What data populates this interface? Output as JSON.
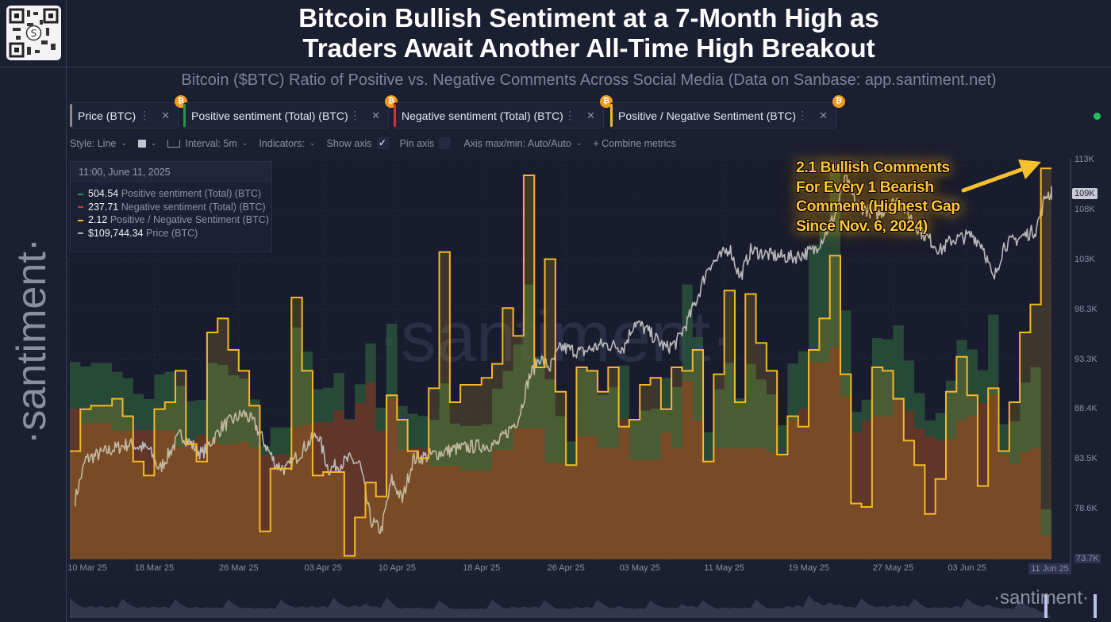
{
  "header": {
    "title_line1": "Bitcoin Bullish Sentiment at a 7-Month High as",
    "title_line2": "Traders Await Another All-Time High Breakout",
    "subtitle": "Bitcoin ($BTC) Ratio of Positive vs. Negative Comments Across Social Media (Data on Sanbase: app.santiment.net)",
    "watermark": "·santiment·",
    "qr_icon": "qr-code-icon"
  },
  "metrics": [
    {
      "label": "Price (BTC)",
      "color": "#9a9a9a"
    },
    {
      "label": "Positive sentiment (Total) (BTC)",
      "color": "#2f8f4e"
    },
    {
      "label": "Negative sentiment (Total) (BTC)",
      "color": "#d0343a"
    },
    {
      "label": "Positive / Negative Sentiment (BTC)",
      "color": "#f5b826"
    }
  ],
  "toolbar": {
    "style": "Style: Line",
    "interval": "Interval: 5m",
    "indicators": "Indicators:",
    "show_axis": "Show axis",
    "show_axis_checked": true,
    "pin_axis": "Pin axis",
    "pin_axis_checked": false,
    "axis_minmax": "Axis max/min: Auto/Auto",
    "combine": "+ Combine metrics"
  },
  "legend": {
    "timestamp": "11:00, June 11, 2025",
    "rows": [
      {
        "value": "504.54",
        "label": "Positive sentiment (Total) (BTC)",
        "color": "#2f8f4e"
      },
      {
        "value": "237.71",
        "label": "Negative sentiment (Total) (BTC)",
        "color": "#d0343a"
      },
      {
        "value": "2.12",
        "label": "Positive / Negative Sentiment (BTC)",
        "color": "#f5b826"
      },
      {
        "value": "$109,744.34",
        "label": "Price (BTC)",
        "color": "#b0b0b0"
      }
    ]
  },
  "annotation": {
    "lines": [
      "2.1 Bullish Comments",
      "For Every 1 Bearish",
      "Comment (Highest Gap",
      "Since Nov. 6, 2024)"
    ],
    "color": "#ffc83a"
  },
  "footer_logo": "·santiment·",
  "chart_data": {
    "type": "line",
    "start_date": "2025-03-10",
    "x_ticks": [
      "10 Mar 25",
      "18 Mar 25",
      "26 Mar 25",
      "03 Apr 25",
      "10 Apr 25",
      "18 Apr 25",
      "26 Apr 25",
      "03 May 25",
      "11 May 25",
      "19 May 25",
      "27 May 25",
      "03 Jun 25",
      "11 Jun 25"
    ],
    "price_axis": {
      "ticks": [
        "113K",
        "108K",
        "103K",
        "98.3K",
        "93.3K",
        "88.4K",
        "83.5K",
        "78.6K",
        "73.7K"
      ],
      "ylim": [
        73.7,
        113
      ],
      "current_badge": "109K",
      "unit": "K USD"
    },
    "series": [
      {
        "name": "Positive / Negative Sentiment (BTC)",
        "style": "step-area",
        "color": "#f5b826",
        "values": [
          1.31,
          1.43,
          1.44,
          1.44,
          1.46,
          1.41,
          1.28,
          1.24,
          1.43,
          1.45,
          1.54,
          1.33,
          1.28,
          1.65,
          1.69,
          1.6,
          1.54,
          1.44,
          1.08,
          1.26,
          1.26,
          1.75,
          1.54,
          1.24,
          1.25,
          1.25,
          1.01,
          1.12,
          1.22,
          1.18,
          1.47,
          1.4,
          1.31,
          1.29,
          1.49,
          1.88,
          1.45,
          1.5,
          1.5,
          1.52,
          1.56,
          1.72,
          1.64,
          2.1,
          1.55,
          1.86,
          1.48,
          1.27,
          1.55,
          1.54,
          1.48,
          1.55,
          1.38,
          1.4,
          1.5,
          1.52,
          1.43,
          1.55,
          1.54,
          1.6,
          1.28,
          1.53,
          1.77,
          1.45,
          1.76,
          1.62,
          1.54,
          1.3,
          1.41,
          1.38,
          1.6,
          1.69,
          1.87,
          1.53,
          1.16,
          1.15,
          1.55,
          1.54,
          1.46,
          1.34,
          1.27,
          1.13,
          1.23,
          1.48,
          1.58,
          1.47,
          1.21,
          1.49,
          1.31,
          1.45,
          1.65,
          1.73,
          2.12
        ]
      },
      {
        "name": "Negative sentiment (Total) (BTC)",
        "style": "step-area",
        "color": "#8a3a24",
        "values": [
          1520,
          1360,
          1376,
          1376,
          1296,
          1296,
          1304,
          1304,
          1304,
          1304,
          1136,
          1200,
          1256,
          1200,
          1160,
          1160,
          1184,
          1120,
          1056,
          1056,
          1056,
          1336,
          1360,
          1384,
          1384,
          1504,
          1400,
          1576,
          1784,
          1296,
          1616,
          1104,
          1120,
          1120,
          944,
          944,
          944,
          896,
          896,
          896,
          1104,
          1104,
          1320,
          1320,
          1320,
          976,
          976,
          936,
          1240,
          1240,
          1120,
          1120,
          1416,
          1000,
          1000,
          1000,
          1280,
          1120,
          1800,
          1400,
          1000,
          1120,
          1120,
          1120,
          1120,
          1120,
          1080,
          1040,
          1400,
          1520,
          1984,
          1984,
          2136,
          1640,
          1280,
          1400,
          1440,
          1440,
          1616,
          1496,
          1320,
          1240,
          1200,
          1216,
          1400,
          1440,
          1576,
          1656,
          1040,
          960,
          1080,
          1120,
          237.71
        ]
      },
      {
        "name": "Positive sentiment (Total) (BTC)",
        "style": "step-area",
        "color": "#2f6b45",
        "derived": "negative x ratio",
        "last_value": 504.54
      },
      {
        "name": "Price (BTC)",
        "style": "line",
        "color": "#b9b9b9",
        "points": [
          [
            "2025-03-10",
            79.6
          ],
          [
            "2025-03-11",
            83.5
          ],
          [
            "2025-03-13",
            84.3
          ],
          [
            "2025-03-15",
            85.0
          ],
          [
            "2025-03-17",
            84.5
          ],
          [
            "2025-03-18",
            82.5
          ],
          [
            "2025-03-20",
            86.0
          ],
          [
            "2025-03-22",
            84.0
          ],
          [
            "2025-03-24",
            86.8
          ],
          [
            "2025-03-26",
            88.0
          ],
          [
            "2025-03-27",
            87.0
          ],
          [
            "2025-03-29",
            83.0
          ],
          [
            "2025-03-30",
            82.5
          ],
          [
            "2025-04-01",
            85.0
          ],
          [
            "2025-04-02",
            86.0
          ],
          [
            "2025-04-03",
            82.5
          ],
          [
            "2025-04-05",
            83.5
          ],
          [
            "2025-04-06",
            83.0
          ],
          [
            "2025-04-07",
            77.5
          ],
          [
            "2025-04-08",
            76.5
          ],
          [
            "2025-04-09",
            81.5
          ],
          [
            "2025-04-10",
            79.5
          ],
          [
            "2025-04-11",
            83.5
          ],
          [
            "2025-04-13",
            84.0
          ],
          [
            "2025-04-15",
            84.5
          ],
          [
            "2025-04-17",
            84.8
          ],
          [
            "2025-04-19",
            85.0
          ],
          [
            "2025-04-21",
            87.5
          ],
          [
            "2025-04-22",
            91.5
          ],
          [
            "2025-04-23",
            93.5
          ],
          [
            "2025-04-24",
            92.5
          ],
          [
            "2025-04-25",
            94.5
          ],
          [
            "2025-04-27",
            94.0
          ],
          [
            "2025-04-29",
            94.8
          ],
          [
            "2025-05-01",
            94.5
          ],
          [
            "2025-05-02",
            97.0
          ],
          [
            "2025-05-03",
            96.3
          ],
          [
            "2025-05-05",
            94.4
          ],
          [
            "2025-05-06",
            95.0
          ],
          [
            "2025-05-07",
            97.0
          ],
          [
            "2025-05-08",
            99.5
          ],
          [
            "2025-05-09",
            102.5
          ],
          [
            "2025-05-10",
            103.2
          ],
          [
            "2025-05-11",
            104.3
          ],
          [
            "2025-05-12",
            101.3
          ],
          [
            "2025-05-13",
            104.0
          ],
          [
            "2025-05-15",
            103.5
          ],
          [
            "2025-05-17",
            103.3
          ],
          [
            "2025-05-19",
            104.0
          ],
          [
            "2025-05-20",
            105.5
          ],
          [
            "2025-05-21",
            107.5
          ],
          [
            "2025-05-22",
            111.0
          ],
          [
            "2025-05-23",
            108.5
          ],
          [
            "2025-05-25",
            107.5
          ],
          [
            "2025-05-27",
            109.0
          ],
          [
            "2025-05-29",
            106.0
          ],
          [
            "2025-05-31",
            104.0
          ],
          [
            "2025-06-01",
            105.0
          ],
          [
            "2025-06-03",
            105.5
          ],
          [
            "2025-06-04",
            104.5
          ],
          [
            "2025-06-05",
            101.0
          ],
          [
            "2025-06-06",
            104.5
          ],
          [
            "2025-06-08",
            105.5
          ],
          [
            "2025-06-09",
            106.0
          ],
          [
            "2025-06-10",
            109.5
          ],
          [
            "2025-06-11",
            109.7
          ]
        ]
      }
    ],
    "grid": true,
    "legend": "top-left"
  }
}
